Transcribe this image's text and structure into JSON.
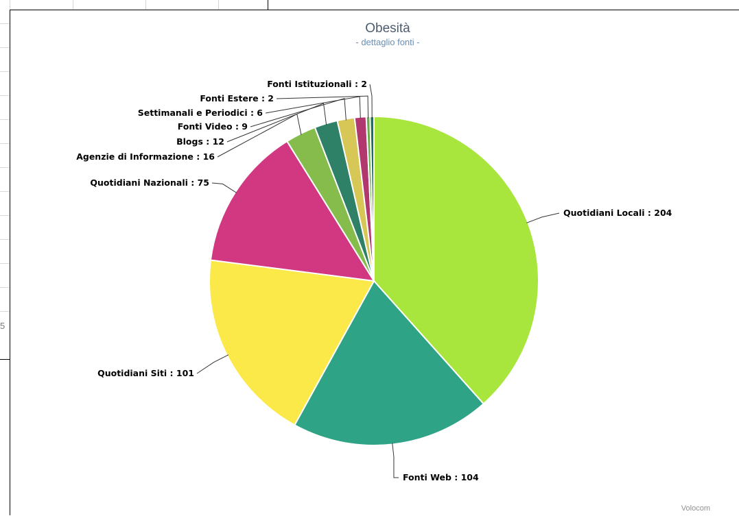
{
  "side_number": "5",
  "chart_data": {
    "type": "pie",
    "title": "Obesità",
    "subtitle": "- dettaglio fonti -",
    "credit": "Volocom",
    "slices": [
      {
        "label": "Quotidiani Locali : 204",
        "value": 204,
        "color": "#a8e63e"
      },
      {
        "label": "Fonti Web : 104",
        "value": 104,
        "color": "#2fa385"
      },
      {
        "label": "Quotidiani Siti  : 101",
        "value": 101,
        "color": "#fbe94a"
      },
      {
        "label": "Quotidiani Nazionali : 75",
        "value": 75,
        "color": "#d23882"
      },
      {
        "label": "Agenzie di Informazione : 16",
        "value": 16,
        "color": "#86bc4c"
      },
      {
        "label": "Blogs : 12",
        "value": 12,
        "color": "#2e8166"
      },
      {
        "label": "Fonti Video : 9",
        "value": 9,
        "color": "#d6c756"
      },
      {
        "label": "Settimanali e Periodici : 6",
        "value": 6,
        "color": "#b0386e"
      },
      {
        "label": "Fonti Estere : 2",
        "value": 2,
        "color": "#6bab4a"
      },
      {
        "label": "Fonti Istituzionali : 2",
        "value": 2,
        "color": "#1f7060"
      }
    ]
  }
}
